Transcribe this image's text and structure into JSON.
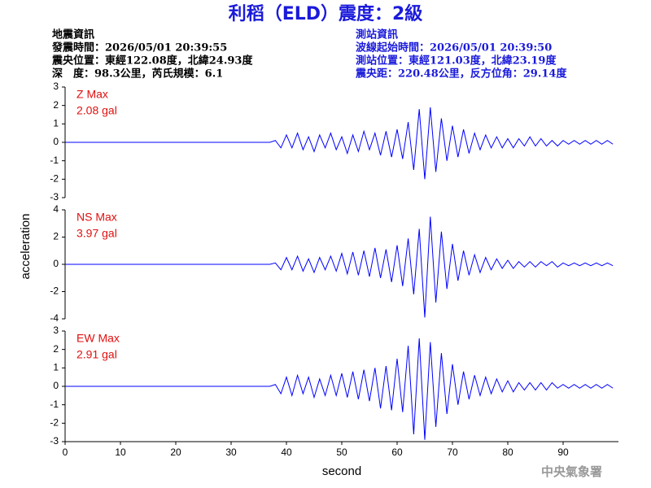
{
  "header": {
    "title": "利稻（ELD）震度：2級",
    "left": [
      "地震資訊",
      "發震時間：2026/05/01 20:39:55",
      "震央位置：東經122.08度，北緯24.93度",
      "深　度：98.3公里，芮氏規模：6.1"
    ],
    "right": [
      "測站資訊",
      "波線起始時間：2026/05/01 20:39:50",
      "測站位置：東經121.03度，北緯23.19度",
      "震央距：220.48公里，反方位角：29.14度"
    ]
  },
  "footer": "中央氣象署",
  "chart_data": [
    {
      "type": "line",
      "annotations": [
        "Z Max",
        "2.08 gal"
      ],
      "color": "#0000ff",
      "xlim": [
        0,
        100
      ],
      "ylim": [
        -3,
        3
      ],
      "yticks": [
        -3,
        -2,
        -1,
        0,
        1,
        2,
        3
      ],
      "x": [
        0,
        37,
        38,
        39,
        40,
        41,
        42,
        43,
        44,
        45,
        46,
        47,
        48,
        49,
        50,
        51,
        52,
        53,
        54,
        55,
        56,
        57,
        58,
        59,
        60,
        61,
        62,
        63,
        64,
        65,
        66,
        67,
        68,
        69,
        70,
        71,
        72,
        73,
        74,
        75,
        76,
        77,
        78,
        79,
        80,
        81,
        82,
        83,
        84,
        85,
        86,
        87,
        88,
        89,
        90,
        91,
        92,
        93,
        94,
        95,
        96,
        97,
        98,
        99
      ],
      "values": [
        0,
        0,
        0.1,
        -0.3,
        0.4,
        -0.3,
        0.5,
        -0.4,
        0.3,
        -0.5,
        0.4,
        -0.3,
        0.5,
        -0.4,
        0.3,
        -0.6,
        0.4,
        -0.5,
        0.6,
        -0.4,
        0.5,
        -0.7,
        0.6,
        -0.8,
        0.7,
        -0.9,
        1.1,
        -1.5,
        1.8,
        -2.0,
        1.9,
        -1.6,
        1.3,
        -1.0,
        0.9,
        -0.8,
        0.7,
        -0.6,
        0.5,
        -0.4,
        0.4,
        -0.3,
        0.3,
        -0.3,
        0.2,
        -0.3,
        0.2,
        -0.2,
        0.3,
        -0.2,
        0.2,
        -0.2,
        0.1,
        -0.2,
        0.1,
        -0.1,
        0.1,
        -0.1,
        0.1,
        -0.1,
        0.1,
        -0.1,
        0.1,
        -0.1
      ]
    },
    {
      "type": "line",
      "annotations": [
        "NS Max",
        "3.97 gal"
      ],
      "color": "#0000ff",
      "ylabel": "acceleration",
      "xlim": [
        0,
        100
      ],
      "ylim": [
        -4,
        4
      ],
      "yticks": [
        -4,
        -2,
        0,
        2,
        4
      ],
      "x": [
        0,
        37,
        38,
        39,
        40,
        41,
        42,
        43,
        44,
        45,
        46,
        47,
        48,
        49,
        50,
        51,
        52,
        53,
        54,
        55,
        56,
        57,
        58,
        59,
        60,
        61,
        62,
        63,
        64,
        65,
        66,
        67,
        68,
        69,
        70,
        71,
        72,
        73,
        74,
        75,
        76,
        77,
        78,
        79,
        80,
        81,
        82,
        83,
        84,
        85,
        86,
        87,
        88,
        89,
        90,
        91,
        92,
        93,
        94,
        95,
        96,
        97,
        98,
        99
      ],
      "values": [
        0,
        0,
        0.1,
        -0.4,
        0.5,
        -0.4,
        0.6,
        -0.5,
        0.4,
        -0.6,
        0.5,
        -0.4,
        0.6,
        -0.5,
        0.8,
        -0.7,
        0.9,
        -0.8,
        1.0,
        -0.9,
        1.2,
        -1.0,
        1.1,
        -1.3,
        1.4,
        -1.6,
        1.9,
        -2.2,
        2.6,
        -3.9,
        3.5,
        -2.8,
        2.4,
        -1.8,
        1.5,
        -1.2,
        1.0,
        -0.8,
        0.7,
        -0.6,
        0.5,
        -0.4,
        0.4,
        -0.3,
        0.3,
        -0.3,
        0.2,
        -0.2,
        0.2,
        -0.2,
        0.2,
        -0.1,
        0.2,
        -0.2,
        0.1,
        -0.1,
        0.1,
        -0.1,
        0.1,
        -0.1,
        0.1,
        -0.1,
        0.1,
        -0.1
      ]
    },
    {
      "type": "line",
      "annotations": [
        "EW Max",
        "2.91 gal"
      ],
      "color": "#0000ff",
      "xlabel": "second",
      "xlim": [
        0,
        100
      ],
      "xticks": [
        0,
        10,
        20,
        30,
        40,
        50,
        60,
        70,
        80,
        90
      ],
      "ylim": [
        -3,
        3
      ],
      "yticks": [
        -3,
        -2,
        -1,
        0,
        1,
        2,
        3
      ],
      "x": [
        0,
        37,
        38,
        39,
        40,
        41,
        42,
        43,
        44,
        45,
        46,
        47,
        48,
        49,
        50,
        51,
        52,
        53,
        54,
        55,
        56,
        57,
        58,
        59,
        60,
        61,
        62,
        63,
        64,
        65,
        66,
        67,
        68,
        69,
        70,
        71,
        72,
        73,
        74,
        75,
        76,
        77,
        78,
        79,
        80,
        81,
        82,
        83,
        84,
        85,
        86,
        87,
        88,
        89,
        90,
        91,
        92,
        93,
        94,
        95,
        96,
        97,
        98,
        99
      ],
      "values": [
        0,
        0,
        0.1,
        -0.4,
        0.5,
        -0.5,
        0.6,
        -0.4,
        0.5,
        -0.6,
        0.4,
        -0.5,
        0.6,
        -0.5,
        0.7,
        -0.6,
        0.8,
        -0.7,
        0.9,
        -0.8,
        1.0,
        -1.2,
        1.1,
        -1.3,
        1.5,
        -1.4,
        2.2,
        -2.6,
        2.6,
        -2.9,
        2.4,
        -2.2,
        1.8,
        -1.5,
        1.2,
        -1.0,
        0.8,
        -0.7,
        0.6,
        -0.5,
        0.5,
        -0.4,
        0.4,
        -0.3,
        0.3,
        -0.3,
        0.2,
        -0.2,
        0.2,
        -0.2,
        0.2,
        -0.2,
        0.2,
        -0.1,
        0.1,
        -0.1,
        0.1,
        -0.1,
        0.1,
        -0.1,
        0.1,
        -0.1,
        0.1,
        -0.1
      ]
    }
  ]
}
